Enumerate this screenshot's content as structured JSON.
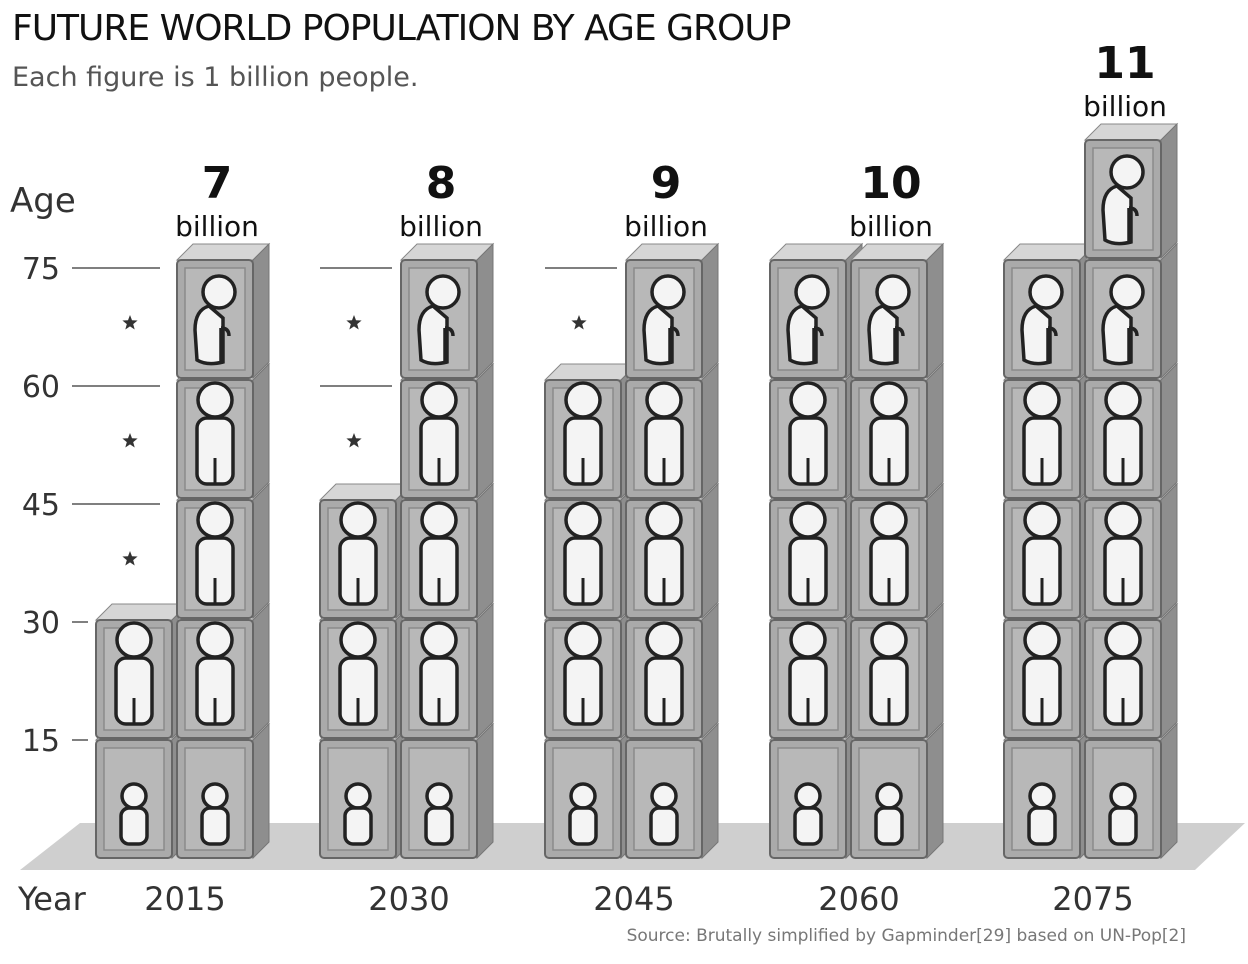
{
  "title": "FUTURE WORLD POPULATION BY AGE GROUP",
  "subtitle": "Each figure is 1 billion people.",
  "source": "Source: Brutally simplified by Gapminder[29] based on UN-Pop[2]",
  "colors": {
    "box_front": "#aaaaaa",
    "box_side": "#8e8e8e",
    "box_top": "#d6d6d6",
    "figure": "#f4f4f4",
    "floor": "#cfcfcf",
    "text": "#111111"
  },
  "chart_data": {
    "type": "pictogram-stacked",
    "xlabel": "Year",
    "ylabel": "Age",
    "unit": "billion",
    "yticks": [
      15,
      30,
      45,
      60,
      75
    ],
    "ylim": [
      0,
      75
    ],
    "age_groups": [
      "0-15",
      "15-30",
      "30-45",
      "45-60",
      "60-75",
      "75+"
    ],
    "years": [
      {
        "year": "2015",
        "total": "7",
        "counts": [
          2,
          2,
          1,
          1,
          1,
          0
        ]
      },
      {
        "year": "2030",
        "total": "8",
        "counts": [
          2,
          2,
          2,
          1,
          1,
          0
        ]
      },
      {
        "year": "2045",
        "total": "9",
        "counts": [
          2,
          2,
          2,
          2,
          1,
          0
        ]
      },
      {
        "year": "2060",
        "total": "10",
        "counts": [
          2,
          2,
          2,
          2,
          2,
          0
        ]
      },
      {
        "year": "2075",
        "total": "11",
        "counts": [
          2,
          2,
          2,
          2,
          2,
          1
        ]
      }
    ]
  }
}
